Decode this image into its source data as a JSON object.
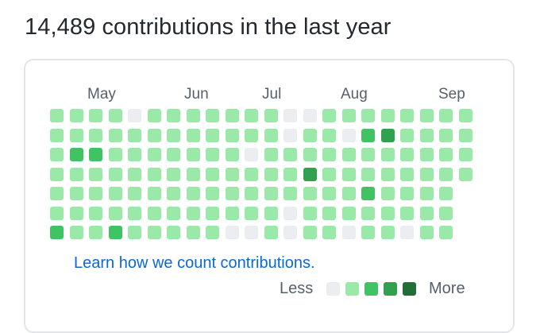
{
  "heading": "14,489 contributions in the last year",
  "months": [
    "May",
    "Jun",
    "Jul",
    "Aug",
    "Sep"
  ],
  "learn_link": "Learn how we count contributions.",
  "legend": {
    "less": "Less",
    "more": "More",
    "levels": [
      0,
      1,
      2,
      3,
      4
    ]
  },
  "level_colors": [
    "#ebedf0",
    "#9be9a8",
    "#40c463",
    "#30a14e",
    "#216e39"
  ],
  "grid": [
    [
      1,
      1,
      1,
      1,
      0,
      1,
      1,
      1,
      1,
      1,
      1,
      1,
      0,
      0,
      1,
      1,
      1,
      1,
      1,
      1,
      1,
      1
    ],
    [
      1,
      1,
      1,
      1,
      1,
      1,
      1,
      1,
      1,
      1,
      1,
      1,
      0,
      1,
      1,
      0,
      2,
      3,
      1,
      1,
      1,
      1
    ],
    [
      1,
      2,
      2,
      1,
      1,
      1,
      1,
      1,
      1,
      1,
      0,
      1,
      1,
      1,
      1,
      1,
      1,
      1,
      1,
      1,
      1,
      1
    ],
    [
      1,
      1,
      1,
      1,
      1,
      1,
      1,
      1,
      1,
      1,
      1,
      1,
      1,
      3,
      1,
      1,
      1,
      1,
      1,
      1,
      1,
      1
    ],
    [
      1,
      1,
      1,
      1,
      1,
      1,
      1,
      1,
      1,
      1,
      1,
      1,
      1,
      1,
      1,
      1,
      2,
      1,
      1,
      1,
      1,
      null
    ],
    [
      1,
      1,
      1,
      1,
      1,
      1,
      1,
      1,
      1,
      1,
      1,
      1,
      0,
      1,
      1,
      1,
      1,
      1,
      1,
      1,
      1,
      null
    ],
    [
      2,
      1,
      1,
      2,
      1,
      1,
      1,
      1,
      1,
      0,
      0,
      1,
      0,
      1,
      1,
      0,
      1,
      1,
      0,
      1,
      1,
      null
    ]
  ]
}
